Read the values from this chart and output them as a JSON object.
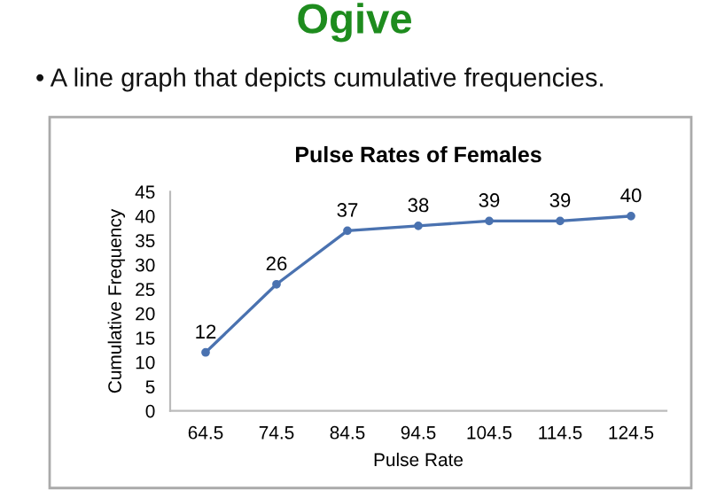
{
  "chart_data": {
    "type": "line",
    "title": "Pulse Rates of Females",
    "annotations": [
      "Ogive",
      "• A line graph that depicts cumulative frequencies."
    ],
    "xlabel": "Pulse Rate",
    "ylabel": "Cumulative Frequency",
    "categories": [
      "64.5",
      "74.5",
      "84.5",
      "94.5",
      "104.5",
      "114.5",
      "124.5"
    ],
    "series": [
      {
        "color": "#4a72b0",
        "values": [
          12,
          26,
          37,
          38,
          39,
          39,
          40
        ]
      }
    ],
    "ylim": [
      0,
      45
    ],
    "yticks": [
      0,
      5,
      10,
      15,
      20,
      25,
      30,
      35,
      40,
      45
    ],
    "data_labels": true,
    "marker": "circle",
    "line_style": "solid",
    "grid": false,
    "legend": false
  }
}
